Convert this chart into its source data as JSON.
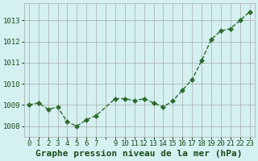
{
  "x": [
    0,
    1,
    2,
    3,
    4,
    5,
    6,
    7,
    9,
    10,
    11,
    12,
    13,
    14,
    15,
    16,
    17,
    18,
    19,
    20,
    21,
    22,
    23
  ],
  "y": [
    1009.0,
    1009.1,
    1008.8,
    1008.9,
    1008.2,
    1008.0,
    1008.3,
    1008.5,
    1009.3,
    1009.3,
    1009.2,
    1009.3,
    1009.1,
    1008.9,
    1009.2,
    1009.7,
    1010.2,
    1011.1,
    1012.1,
    1012.5,
    1012.6,
    1013.0,
    1013.4
  ],
  "line_color": "#2d6a2d",
  "marker": "D",
  "marker_size": 3,
  "bg_color": "#d4f0f0",
  "grid_color": "#aaaaaa",
  "ylabel_ticks": [
    1008,
    1009,
    1010,
    1011,
    1012,
    1013
  ],
  "xtick_labels": [
    "0",
    "1",
    "2",
    "3",
    "4",
    "5",
    "6",
    "7",
    "",
    "9",
    "10",
    "11",
    "12",
    "13",
    "14",
    "15",
    "16",
    "17",
    "18",
    "19",
    "20",
    "21",
    "22",
    "23"
  ],
  "ylim": [
    1007.5,
    1013.8
  ],
  "xlim": [
    -0.5,
    23.5
  ],
  "xlabel": "Graphe pression niveau de la mer (hPa)",
  "title_color": "#1a4d1a",
  "label_color": "#1a4d1a",
  "tick_color": "#1a4d1a",
  "xlabel_fontsize": 8,
  "tick_fontsize": 6.5
}
